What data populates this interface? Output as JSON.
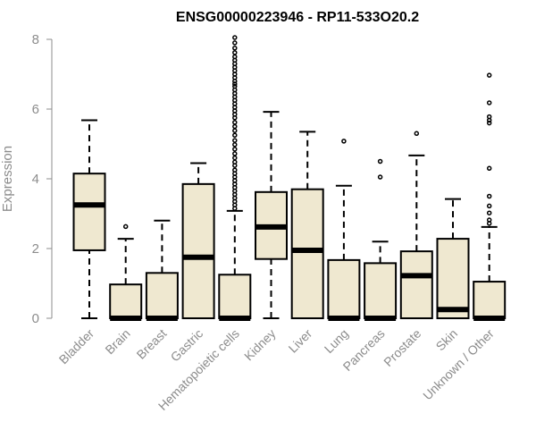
{
  "colors": {
    "box_fill": "#efe8d0",
    "stroke": "#000000",
    "axis_text": "#8c8c8c"
  },
  "chart_data": {
    "type": "boxplot",
    "title": "ENSG00000223946 - RP11-533O20.2",
    "xlabel": "",
    "ylabel": "Expression",
    "ylim": [
      0,
      8
    ],
    "yticks": [
      0,
      2,
      4,
      6,
      8
    ],
    "categories": [
      "Bladder",
      "Brain",
      "Breast",
      "Gastric",
      "Hematopoietic cells",
      "Kidney",
      "Liver",
      "Lung",
      "Pancreas",
      "Prostate",
      "Skin",
      "Unknown / Other"
    ],
    "boxes": [
      {
        "category": "Bladder",
        "whisker_low": 0,
        "q1": 1.95,
        "median": 3.25,
        "q3": 4.15,
        "whisker_high": 5.68,
        "outliers": []
      },
      {
        "category": "Brain",
        "whisker_low": 0,
        "q1": 0,
        "median": 0,
        "q3": 0.97,
        "whisker_high": 2.28,
        "outliers": [
          2.63
        ]
      },
      {
        "category": "Breast",
        "whisker_low": 0,
        "q1": 0,
        "median": 0,
        "q3": 1.3,
        "whisker_high": 2.8,
        "outliers": []
      },
      {
        "category": "Gastric",
        "whisker_low": 0,
        "q1": 0,
        "median": 1.75,
        "q3": 3.85,
        "whisker_high": 4.45,
        "outliers": []
      },
      {
        "category": "Hematopoietic cells",
        "whisker_low": 0,
        "q1": 0,
        "median": 0,
        "q3": 1.25,
        "whisker_high": 3.08,
        "outliers": [
          8.05,
          7.9,
          7.75,
          7.62,
          7.5,
          7.4,
          7.3,
          7.2,
          7.1,
          7.0,
          6.9,
          6.8,
          6.72,
          6.65,
          6.55,
          6.45,
          6.35,
          6.25,
          6.15,
          6.05,
          5.95,
          5.85,
          5.75,
          5.62,
          5.5,
          5.38,
          5.25,
          5.1,
          4.98,
          4.85,
          4.72,
          4.6,
          4.48,
          4.38,
          4.25,
          4.15,
          4.05,
          3.95,
          3.85,
          3.75,
          3.65,
          3.55,
          3.45,
          3.35,
          3.25,
          3.15
        ]
      },
      {
        "category": "Kidney",
        "whisker_low": 0,
        "q1": 1.7,
        "median": 2.62,
        "q3": 3.62,
        "whisker_high": 5.92,
        "outliers": []
      },
      {
        "category": "Liver",
        "whisker_low": 0,
        "q1": 0,
        "median": 1.95,
        "q3": 3.7,
        "whisker_high": 5.35,
        "outliers": []
      },
      {
        "category": "Lung",
        "whisker_low": 0,
        "q1": 0,
        "median": 0,
        "q3": 1.67,
        "whisker_high": 3.8,
        "outliers": [
          5.08
        ]
      },
      {
        "category": "Pancreas",
        "whisker_low": 0,
        "q1": 0,
        "median": 0,
        "q3": 1.58,
        "whisker_high": 2.2,
        "outliers": [
          4.05,
          4.5
        ]
      },
      {
        "category": "Prostate",
        "whisker_low": 0,
        "q1": 0,
        "median": 1.22,
        "q3": 1.92,
        "whisker_high": 4.67,
        "outliers": [
          5.3
        ]
      },
      {
        "category": "Skin",
        "whisker_low": 0,
        "q1": 0,
        "median": 0.25,
        "q3": 2.28,
        "whisker_high": 3.42,
        "outliers": []
      },
      {
        "category": "Unknown / Other",
        "whisker_low": 0,
        "q1": 0,
        "median": 0,
        "q3": 1.05,
        "whisker_high": 2.62,
        "outliers": [
          6.97,
          6.18,
          5.78,
          5.68,
          5.6,
          4.3,
          3.5,
          3.22,
          3.02,
          2.82,
          2.72
        ]
      }
    ]
  }
}
